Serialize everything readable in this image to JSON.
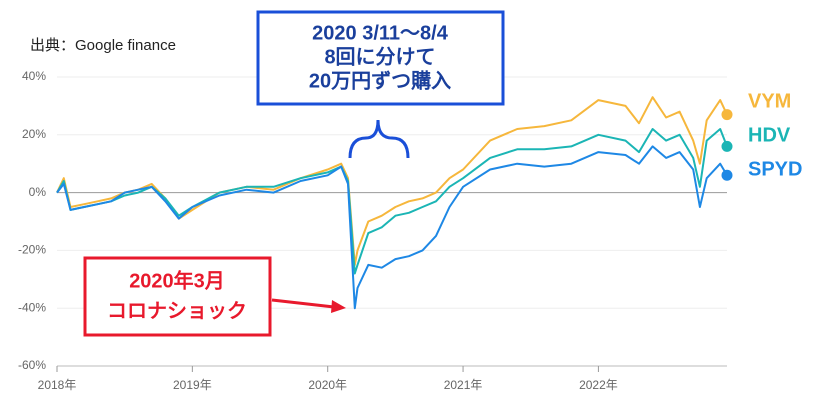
{
  "chart_data": {
    "type": "line",
    "source": "出典：Google finance",
    "buy_note": [
      "2020 3/11〜8/4",
      "8回に分けて",
      "20万円ずつ購入"
    ],
    "crash_note": [
      "2020年3月",
      "コロナショック"
    ],
    "x": [
      2018.0,
      2018.05,
      2018.1,
      2018.2,
      2018.3,
      2018.4,
      2018.5,
      2018.6,
      2018.7,
      2018.8,
      2018.9,
      2019.0,
      2019.2,
      2019.4,
      2019.6,
      2019.8,
      2020.0,
      2020.1,
      2020.15,
      2020.2,
      2020.22,
      2020.3,
      2020.4,
      2020.5,
      2020.6,
      2020.7,
      2020.8,
      2020.9,
      2021.0,
      2021.2,
      2021.4,
      2021.6,
      2021.8,
      2022.0,
      2022.2,
      2022.3,
      2022.4,
      2022.5,
      2022.6,
      2022.7,
      2022.75,
      2022.8,
      2022.9,
      2022.95
    ],
    "series": [
      {
        "name": "VYM",
        "color": "#f6b73c",
        "values": [
          0,
          5,
          -5,
          -4,
          -3,
          -2,
          0,
          1,
          3,
          -2,
          -9,
          -6,
          0,
          2,
          1,
          5,
          8,
          10,
          5,
          -25,
          -20,
          -10,
          -8,
          -5,
          -3,
          -2,
          0,
          5,
          8,
          18,
          22,
          23,
          25,
          32,
          30,
          24,
          33,
          26,
          28,
          18,
          10,
          25,
          32,
          27
        ]
      },
      {
        "name": "HDV",
        "color": "#1bb5b5",
        "values": [
          0,
          4,
          -6,
          -5,
          -4,
          -3,
          -1,
          0,
          2,
          -2,
          -8,
          -5,
          0,
          2,
          2,
          5,
          7,
          9,
          4,
          -28,
          -25,
          -14,
          -12,
          -8,
          -7,
          -5,
          -3,
          2,
          5,
          12,
          15,
          15,
          16,
          20,
          18,
          14,
          22,
          18,
          20,
          12,
          2,
          18,
          22,
          16
        ]
      },
      {
        "name": "SPYD",
        "color": "#1e88e5",
        "values": [
          0,
          3,
          -6,
          -5,
          -4,
          -3,
          0,
          1,
          2,
          -3,
          -9,
          -5,
          -1,
          1,
          0,
          4,
          6,
          9,
          3,
          -40,
          -33,
          -25,
          -26,
          -23,
          -22,
          -20,
          -15,
          -5,
          2,
          8,
          10,
          9,
          10,
          14,
          13,
          10,
          16,
          12,
          14,
          8,
          -5,
          5,
          10,
          6
        ]
      }
    ],
    "xlim": [
      2018,
      2022.95
    ],
    "xticks": [
      {
        "value": 2018,
        "label": "2018年"
      },
      {
        "value": 2019,
        "label": "2019年"
      },
      {
        "value": 2020,
        "label": "2020年"
      },
      {
        "value": 2021,
        "label": "2021年"
      },
      {
        "value": 2022,
        "label": "2022年"
      }
    ],
    "ylim": [
      -60,
      40
    ],
    "yticks": [
      {
        "value": -60,
        "label": "-60%"
      },
      {
        "value": -40,
        "label": "-40%"
      },
      {
        "value": -20,
        "label": "-20%"
      },
      {
        "value": 0,
        "label": "0%"
      },
      {
        "value": 20,
        "label": "20%"
      },
      {
        "value": 40,
        "label": "40%"
      }
    ],
    "grid": true
  }
}
